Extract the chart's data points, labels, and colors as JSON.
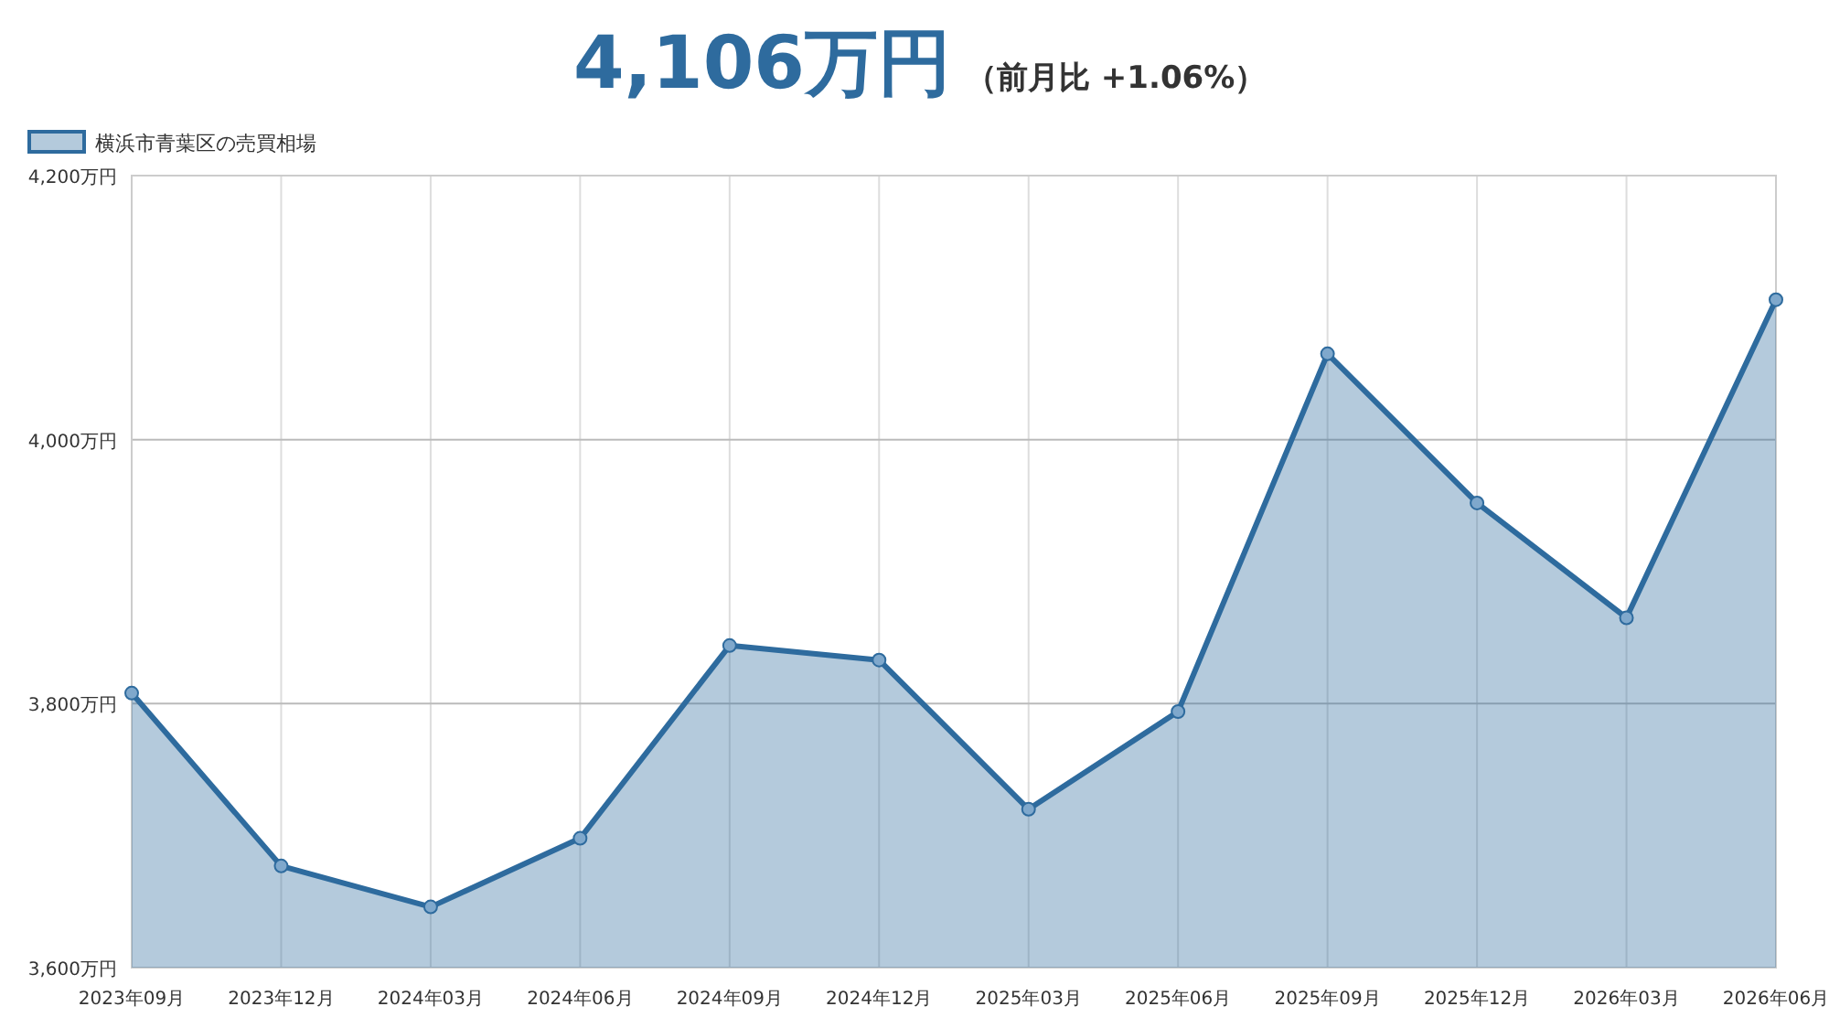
{
  "chart_data": {
    "type": "area",
    "title": "4,106万円",
    "subtitle": "（前月比 +1.06%）",
    "categories": [
      "2023年09月",
      "2023年12月",
      "2024年03月",
      "2024年06月",
      "2024年09月",
      "2024年12月",
      "2025年03月",
      "2025年06月",
      "2025年09月",
      "2025年12月",
      "2026年03月",
      "2026年06月"
    ],
    "series": [
      {
        "name": "横浜市青葉区の売買相場",
        "color": "#2e6b9e",
        "values": [
          3808,
          3677,
          3646,
          3698,
          3844,
          3833,
          3720,
          3794,
          4065,
          3952,
          3865,
          4106
        ]
      }
    ],
    "ylim": [
      3600,
      4200
    ],
    "yticks": [
      {
        "value": 3600,
        "label": "3,600万円"
      },
      {
        "value": 3800,
        "label": "3,800万円"
      },
      {
        "value": 4000,
        "label": "4,000万円"
      },
      {
        "value": 4200,
        "label": "4,200万円"
      }
    ],
    "grid": true,
    "legend": "top left",
    "marker": "circle",
    "line_style": "solid"
  }
}
